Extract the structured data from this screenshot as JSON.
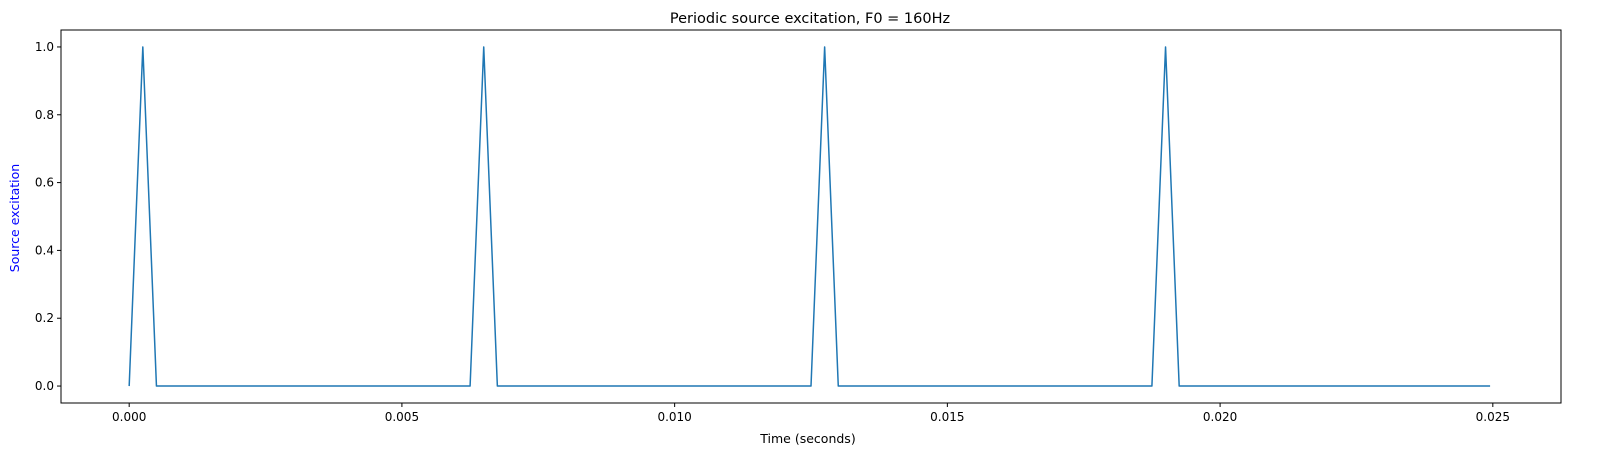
{
  "chart_data": {
    "type": "line",
    "title": "Periodic source excitation, F0 = 160Hz",
    "xlabel": "Time (seconds)",
    "ylabel": "Source excitation",
    "xlim": [
      -0.00125,
      0.02625
    ],
    "ylim": [
      -0.05,
      1.05
    ],
    "xticks": [
      0.0,
      0.005,
      0.01,
      0.015,
      0.02,
      0.025
    ],
    "xtick_labels": [
      "0.000",
      "0.005",
      "0.010",
      "0.015",
      "0.020",
      "0.025"
    ],
    "yticks": [
      0.0,
      0.2,
      0.4,
      0.6,
      0.8,
      1.0
    ],
    "ytick_labels": [
      "0.0",
      "0.2",
      "0.4",
      "0.6",
      "0.8",
      "1.0"
    ],
    "grid": false,
    "series": [
      {
        "color": "#1f77b4",
        "x": [
          0.0,
          0.00025,
          0.0005,
          0.00625,
          0.0065,
          0.00675,
          0.0125,
          0.01275,
          0.013,
          0.01875,
          0.019,
          0.01925,
          0.02495
        ],
        "y": [
          0.0,
          1.0,
          0.0,
          0.0,
          1.0,
          0.0,
          0.0,
          1.0,
          0.0,
          0.0,
          1.0,
          0.0,
          0.0
        ]
      }
    ],
    "ylabel_color": "#0000ff"
  }
}
